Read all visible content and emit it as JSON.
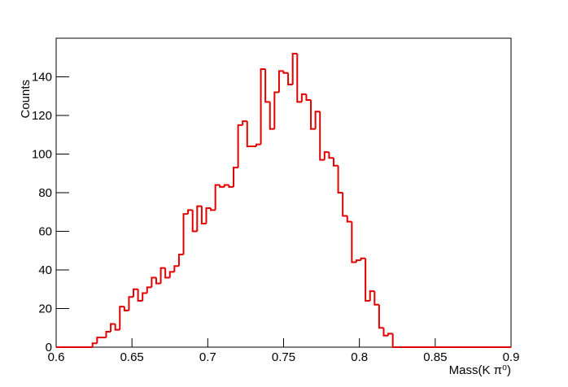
{
  "chart_data": {
    "type": "histogram",
    "x_label": "Mass(K π⁰)",
    "y_label": "Counts",
    "color": "#e00000",
    "bins": [
      0.6,
      0.603,
      0.606,
      0.609,
      0.612,
      0.615,
      0.618,
      0.621,
      0.624,
      0.627,
      0.63,
      0.633,
      0.636,
      0.639,
      0.642,
      0.645,
      0.648,
      0.651,
      0.654,
      0.657,
      0.66,
      0.663,
      0.666,
      0.669,
      0.672,
      0.675,
      0.678,
      0.681,
      0.684,
      0.687,
      0.69,
      0.693,
      0.696,
      0.699,
      0.702,
      0.705,
      0.708,
      0.711,
      0.714,
      0.717,
      0.72,
      0.723,
      0.726,
      0.729,
      0.732,
      0.735,
      0.738,
      0.741,
      0.744,
      0.747,
      0.75,
      0.753,
      0.756,
      0.759,
      0.762,
      0.765,
      0.768,
      0.771,
      0.774,
      0.777,
      0.78,
      0.783,
      0.786,
      0.789,
      0.792,
      0.795,
      0.798,
      0.801,
      0.804,
      0.807,
      0.81,
      0.813,
      0.816,
      0.819,
      0.822,
      0.825,
      0.828,
      0.831,
      0.834,
      0.837,
      0.84,
      0.843,
      0.846,
      0.849,
      0.852,
      0.855,
      0.858,
      0.861,
      0.864,
      0.867,
      0.87,
      0.873,
      0.876,
      0.879,
      0.882,
      0.885,
      0.888,
      0.891,
      0.894,
      0.897,
      0.9
    ],
    "values": [
      0,
      0,
      0,
      0,
      0,
      0,
      0,
      0,
      2,
      5,
      5,
      8,
      12,
      9,
      21,
      19,
      26,
      30,
      24,
      28,
      31,
      36,
      33,
      41,
      36,
      39,
      42,
      48,
      69,
      71,
      60,
      73,
      64,
      72,
      71,
      84,
      83,
      84,
      83,
      93,
      115,
      117,
      104,
      104,
      105,
      144,
      127,
      113,
      132,
      143,
      142,
      136,
      152,
      127,
      131,
      128,
      113,
      122,
      97,
      101,
      98,
      94,
      80,
      68,
      65,
      44,
      45,
      46,
      24,
      29,
      22,
      10,
      6,
      7,
      0,
      0,
      0,
      0,
      0,
      0,
      0,
      0,
      0,
      0,
      0,
      0,
      0,
      0,
      0,
      0,
      0,
      0,
      0,
      0,
      0,
      0,
      0,
      0,
      0,
      0
    ],
    "xlim": [
      0.6,
      0.9
    ],
    "ylim": [
      0,
      160
    ],
    "xticks": [
      0.6,
      0.65,
      0.7,
      0.75,
      0.8,
      0.85,
      0.9
    ],
    "yticks": [
      0,
      20,
      40,
      60,
      80,
      100,
      120,
      140
    ]
  }
}
